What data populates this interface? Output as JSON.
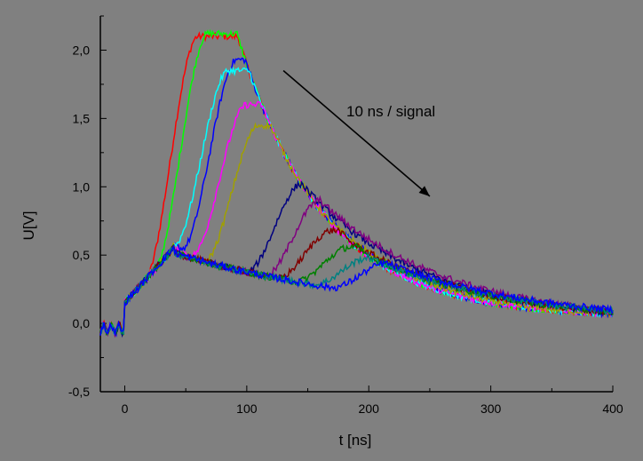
{
  "chart_data": {
    "type": "line",
    "xlabel": "t [ns]",
    "ylabel": "U[V]",
    "xlim": [
      -20,
      400
    ],
    "ylim": [
      -0.5,
      2.25
    ],
    "x_ticks": [
      0,
      100,
      200,
      300,
      400
    ],
    "x_tick_labels": [
      "0",
      "100",
      "200",
      "300",
      "400"
    ],
    "y_ticks": [
      -0.5,
      0.0,
      0.5,
      1.0,
      1.5,
      2.0
    ],
    "y_tick_labels": [
      "-0,5",
      "0,0",
      "0,5",
      "1,0",
      "1,5",
      "2,0"
    ],
    "grid": false,
    "legend": "none",
    "annotation": {
      "text": "10 ns / signal",
      "arrow_from": [
        130,
        1.85
      ],
      "arrow_to": [
        250,
        0.93
      ]
    },
    "series": [
      {
        "color": "#ff0000",
        "peak_t": 60,
        "peak_v": 2.1,
        "base_v": 0.55
      },
      {
        "color": "#00ff00",
        "peak_t": 68,
        "peak_v": 2.12,
        "base_v": 0.55
      },
      {
        "color": "#0000ff",
        "peak_t": 92,
        "peak_v": 1.93,
        "base_v": 0.55
      },
      {
        "color": "#00ffff",
        "peak_t": 85,
        "peak_v": 1.85,
        "base_v": 0.55
      },
      {
        "color": "#ff00ff",
        "peak_t": 100,
        "peak_v": 1.6,
        "base_v": 0.52
      },
      {
        "color": "#a0a000",
        "peak_t": 110,
        "peak_v": 1.45,
        "base_v": 0.5
      },
      {
        "color": "#000080",
        "peak_t": 145,
        "peak_v": 1.02,
        "base_v": 0.5
      },
      {
        "color": "#800080",
        "peak_t": 160,
        "peak_v": 0.9,
        "base_v": 0.5
      },
      {
        "color": "#800000",
        "peak_t": 170,
        "peak_v": 0.68,
        "base_v": 0.5
      },
      {
        "color": "#008000",
        "peak_t": 185,
        "peak_v": 0.56,
        "base_v": 0.5
      },
      {
        "color": "#008080",
        "peak_t": 200,
        "peak_v": 0.48,
        "base_v": 0.5
      },
      {
        "color": "#0000ff",
        "peak_t": 215,
        "peak_v": 0.44,
        "base_v": 0.5
      }
    ]
  }
}
